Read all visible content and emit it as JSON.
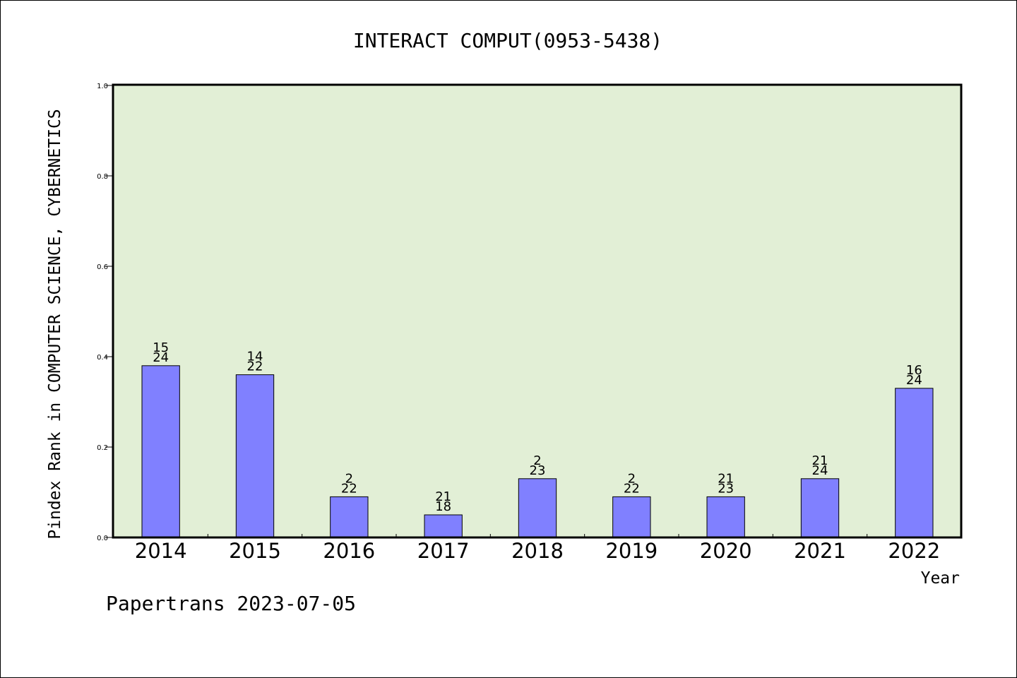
{
  "chart_data": {
    "type": "bar",
    "title": "INTERACT COMPUT(0953-5438)",
    "xlabel": "Year",
    "ylabel": "Pindex Rank in COMPUTER SCIENCE, CYBERNETICS",
    "categories": [
      "2014",
      "2015",
      "2016",
      "2017",
      "2018",
      "2019",
      "2020",
      "2021",
      "2022"
    ],
    "values": [
      0.38,
      0.36,
      0.09,
      0.05,
      0.13,
      0.09,
      0.09,
      0.13,
      0.33
    ],
    "bar_labels": [
      {
        "top": "15",
        "bottom": "24"
      },
      {
        "top": "14",
        "bottom": "22"
      },
      {
        "top": "2",
        "bottom": "22"
      },
      {
        "top": "21",
        "bottom": "18"
      },
      {
        "top": "2",
        "bottom": "23"
      },
      {
        "top": "2",
        "bottom": "22"
      },
      {
        "top": "21",
        "bottom": "23"
      },
      {
        "top": "21",
        "bottom": "24"
      },
      {
        "top": "16",
        "bottom": "24"
      }
    ],
    "ylim": [
      0.0,
      1.0
    ],
    "yticks": [
      "0.0",
      "0.2",
      "0.4",
      "0.6",
      "0.8",
      "1.0"
    ],
    "grid": false,
    "colors": {
      "bar": "#8080ff",
      "plot_background": "#e2efd6"
    }
  },
  "footer": "Papertrans 2023-07-05"
}
